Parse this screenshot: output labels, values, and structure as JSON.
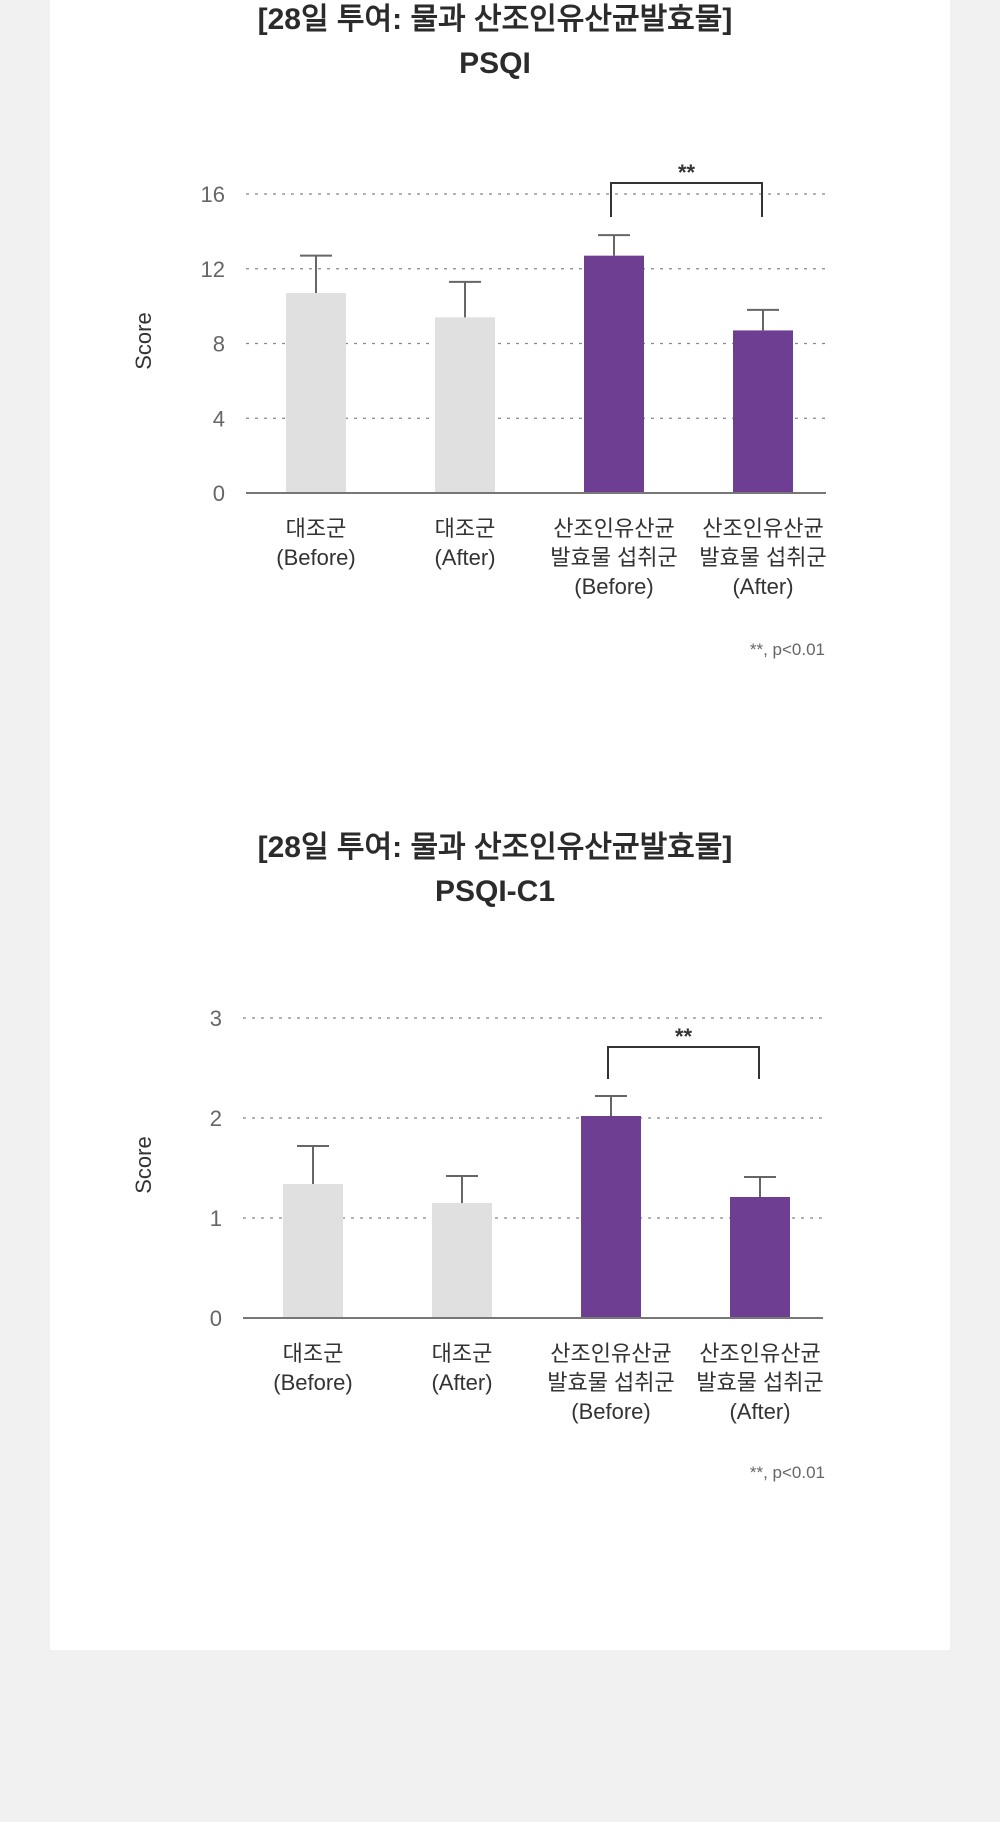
{
  "page": {
    "background": "#f1f1f1",
    "card_background": "#ffffff"
  },
  "colors": {
    "control": "#e0e0e0",
    "treatment": "#6d3e91",
    "error_bar": "#666666",
    "bracket": "#333333",
    "grid": "#888888",
    "axis": "#777777"
  },
  "chart_data": [
    {
      "type": "bar",
      "title": "[28일 투여: 물과 산조인유산균발효물]",
      "subtitle": "PSQI",
      "ylabel": "Score",
      "xlabel": "",
      "ylim": [
        0,
        16
      ],
      "yticks": [
        0,
        4,
        8,
        12,
        16
      ],
      "grid": true,
      "grid_style": "dotted",
      "categories": [
        [
          "대조군",
          "(Before)"
        ],
        [
          "대조군",
          "(After)"
        ],
        [
          "산조인유산균",
          "발효물 섭취군",
          "(Before)"
        ],
        [
          "산조인유산균",
          "발효물 섭취군",
          "(After)"
        ]
      ],
      "values": [
        10.7,
        9.4,
        12.7,
        8.7
      ],
      "errors": [
        2.0,
        1.9,
        1.1,
        1.1
      ],
      "bar_colors": [
        "#e0e0e0",
        "#e0e0e0",
        "#6d3e91",
        "#6d3e91"
      ],
      "significance": {
        "from": 2,
        "to": 3,
        "label": "**"
      },
      "footnote": "**, p<0.01"
    },
    {
      "type": "bar",
      "title": "[28일 투여: 물과 산조인유산균발효물]",
      "subtitle": "PSQI-C1",
      "ylabel": "Score",
      "xlabel": "",
      "ylim": [
        0,
        3
      ],
      "yticks": [
        0,
        1,
        2,
        3
      ],
      "grid": true,
      "grid_style": "dotted",
      "categories": [
        [
          "대조군",
          "(Before)"
        ],
        [
          "대조군",
          "(After)"
        ],
        [
          "산조인유산균",
          "발효물 섭취군",
          "(Before)"
        ],
        [
          "산조인유산균",
          "발효물 섭취군",
          "(After)"
        ]
      ],
      "values": [
        1.34,
        1.15,
        2.02,
        1.21
      ],
      "errors": [
        0.38,
        0.27,
        0.2,
        0.2
      ],
      "bar_colors": [
        "#e0e0e0",
        "#e0e0e0",
        "#6d3e91",
        "#6d3e91"
      ],
      "significance": {
        "from": 2,
        "to": 3,
        "label": "**"
      },
      "footnote": "**, p<0.01"
    }
  ]
}
